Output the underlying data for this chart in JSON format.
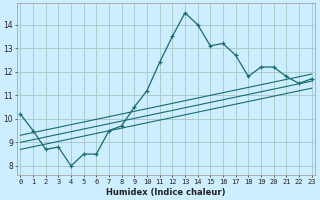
{
  "xlabel": "Humidex (Indice chaleur)",
  "bg_color": "#cceeff",
  "grid_color": "#aacccc",
  "line_color": "#1a6b6b",
  "x_main": [
    0,
    1,
    2,
    3,
    4,
    5,
    6,
    7,
    8,
    9,
    10,
    11,
    12,
    13,
    14,
    15,
    16,
    17,
    18,
    19,
    20,
    21,
    22,
    23
  ],
  "y_main": [
    10.2,
    9.5,
    8.7,
    8.8,
    8.0,
    8.5,
    8.5,
    9.5,
    9.7,
    10.5,
    11.2,
    12.4,
    13.5,
    14.5,
    14.0,
    13.1,
    13.2,
    12.7,
    11.8,
    12.2,
    12.2,
    11.8,
    11.5,
    11.7
  ],
  "line2_x": [
    0,
    23
  ],
  "line2_y": [
    9.3,
    11.9
  ],
  "line3_x": [
    0,
    23
  ],
  "line3_y": [
    9.0,
    11.6
  ],
  "line4_x": [
    0,
    23
  ],
  "line4_y": [
    8.7,
    11.3
  ],
  "xlim": [
    -0.3,
    23.3
  ],
  "ylim": [
    7.6,
    14.9
  ],
  "xticks": [
    0,
    1,
    2,
    3,
    4,
    5,
    6,
    7,
    8,
    9,
    10,
    11,
    12,
    13,
    14,
    15,
    16,
    17,
    18,
    19,
    20,
    21,
    22,
    23
  ],
  "yticks": [
    8,
    9,
    10,
    11,
    12,
    13,
    14
  ],
  "xlabel_fontsize": 6.0,
  "tick_fontsize": 5.0
}
